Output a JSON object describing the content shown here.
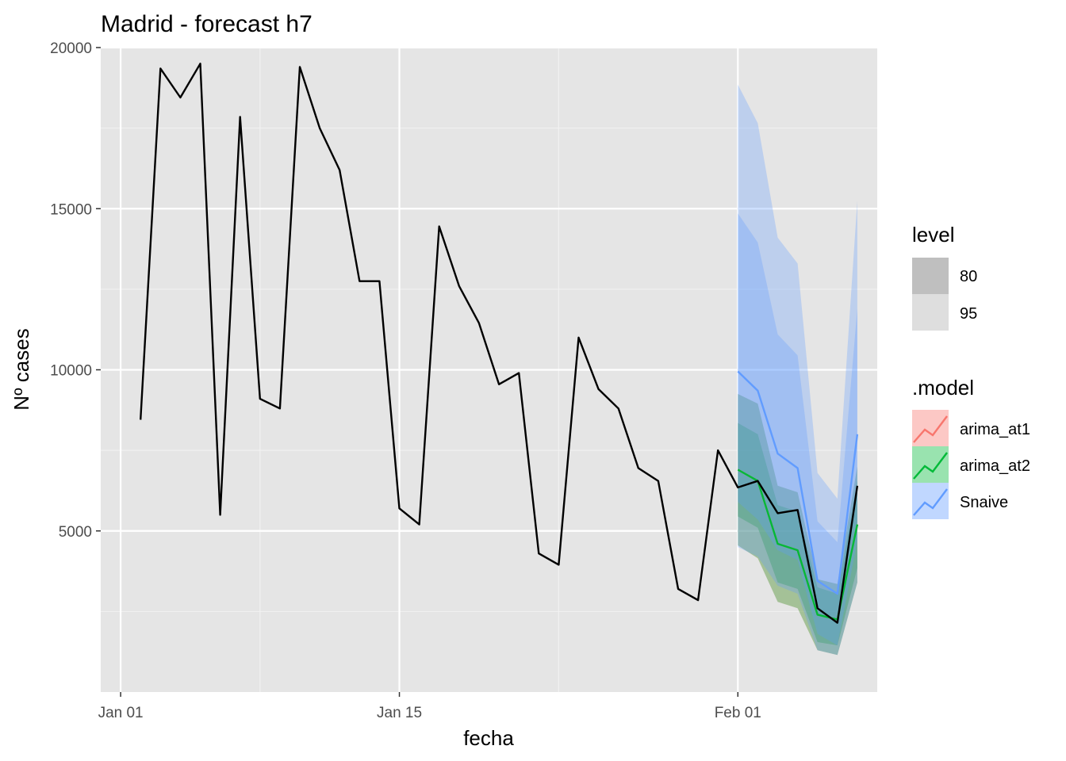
{
  "chart_data": {
    "type": "line",
    "title": "Madrid - forecast h7",
    "xlabel": "fecha",
    "ylabel": "Nº cases",
    "xlim": [
      "2020-12-31",
      "2021-02-08"
    ],
    "ylim": [
      0,
      20000
    ],
    "x_ticks": [
      {
        "date": "2021-01-01",
        "label": "Jan 01"
      },
      {
        "date": "2021-01-15",
        "label": "Jan 15"
      },
      {
        "date": "2021-02-01",
        "label": "Feb 01"
      }
    ],
    "y_ticks": [
      5000,
      10000,
      15000,
      20000
    ],
    "grid": true,
    "observed": {
      "color": "#000000",
      "x": [
        "2021-01-02",
        "2021-01-03",
        "2021-01-04",
        "2021-01-05",
        "2021-01-06",
        "2021-01-07",
        "2021-01-08",
        "2021-01-09",
        "2021-01-10",
        "2021-01-11",
        "2021-01-12",
        "2021-01-13",
        "2021-01-14",
        "2021-01-15",
        "2021-01-16",
        "2021-01-17",
        "2021-01-18",
        "2021-01-19",
        "2021-01-20",
        "2021-01-21",
        "2021-01-22",
        "2021-01-23",
        "2021-01-24",
        "2021-01-25",
        "2021-01-26",
        "2021-01-27",
        "2021-01-28",
        "2021-01-29",
        "2021-01-30",
        "2021-01-31",
        "2021-02-01",
        "2021-02-02",
        "2021-02-03",
        "2021-02-04",
        "2021-02-05",
        "2021-02-06",
        "2021-02-07"
      ],
      "y": [
        8450,
        19350,
        18450,
        19500,
        5500,
        17850,
        9100,
        8800,
        19400,
        17500,
        16200,
        12750,
        12750,
        5700,
        5200,
        14450,
        12600,
        11450,
        9550,
        9900,
        4300,
        3950,
        11000,
        9400,
        8800,
        6950,
        6550,
        3200,
        2850,
        7500,
        6350,
        6550,
        5550,
        5650,
        2600,
        2150,
        6400
      ]
    },
    "forecast_x": [
      "2021-02-01",
      "2021-02-02",
      "2021-02-03",
      "2021-02-04",
      "2021-02-05",
      "2021-02-06",
      "2021-02-07"
    ],
    "series": [
      {
        "name": "arima_at1",
        "color": "#F8766D",
        "mean": [
          6900,
          6550,
          4600,
          4400,
          2400,
          2250,
          5200
        ],
        "lower_80": [
          5450,
          5100,
          3400,
          3200,
          1550,
          1450,
          3850
        ],
        "upper_80": [
          8350,
          8000,
          5800,
          5600,
          3250,
          3050,
          6550
        ],
        "lower_95": [
          4550,
          4150,
          2800,
          2600,
          1300,
          1150,
          3400
        ],
        "upper_95": [
          9250,
          8950,
          6400,
          6200,
          3500,
          3350,
          7000
        ]
      },
      {
        "name": "arima_at2",
        "color": "#00BA38",
        "mean": [
          6900,
          6550,
          4600,
          4400,
          2400,
          2250,
          5200
        ],
        "lower_80": [
          5450,
          5100,
          3400,
          3200,
          1550,
          1450,
          3850
        ],
        "upper_80": [
          8350,
          8000,
          5800,
          5600,
          3250,
          3050,
          6550
        ],
        "lower_95": [
          4550,
          4150,
          2800,
          2600,
          1300,
          1150,
          3400
        ],
        "upper_95": [
          9250,
          8950,
          6400,
          6200,
          3500,
          3350,
          7000
        ]
      },
      {
        "name": "Snaive",
        "color": "#619CFF",
        "mean": [
          9950,
          9350,
          7400,
          6950,
          3450,
          3050,
          8000
        ],
        "lower_80": [
          5900,
          5350,
          4400,
          4100,
          1800,
          1450,
          4700
        ],
        "upper_80": [
          14850,
          13950,
          11100,
          10450,
          5300,
          4650,
          11900
        ],
        "lower_95": [
          4500,
          4200,
          3300,
          3050,
          1300,
          1150,
          3400
        ],
        "upper_95": [
          18850,
          17650,
          14100,
          13300,
          6800,
          6000,
          15250
        ]
      }
    ],
    "legend": {
      "placement": "right",
      "level_title": "level",
      "levels": [
        "80",
        "95"
      ],
      "model_title": ".model",
      "models": [
        "arima_at1",
        "arima_at2",
        "Snaive"
      ]
    }
  }
}
